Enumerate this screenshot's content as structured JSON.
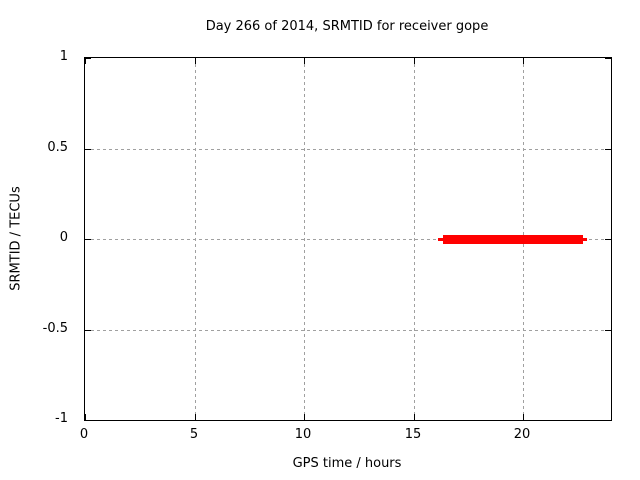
{
  "figure": {
    "title": "Day 266 of 2014, SRMTID for receiver gope",
    "xlabel": "GPS time / hours",
    "ylabel": "SRMTID / TECUs"
  },
  "colors": {
    "background": "#ffffff",
    "border": "#000000",
    "grid": "#a0a0a0",
    "text": "#000000",
    "series": "#ff0000"
  },
  "chart_data": {
    "type": "line",
    "title": "Day 266 of 2014, SRMTID for receiver gope",
    "xlabel": "GPS time / hours",
    "ylabel": "SRMTID / TECUs",
    "xlim": [
      0,
      24
    ],
    "ylim": [
      -1,
      1
    ],
    "x_ticks": [
      0,
      5,
      10,
      15,
      20
    ],
    "y_ticks": [
      1,
      0.5,
      0,
      -0.5,
      -1
    ],
    "grid": true,
    "legend": "none",
    "series": [
      {
        "name": "SRMTID",
        "color": "#ff0000",
        "description": "flat line at 0 TECUs between ~16.1 and ~22.9 GPS hours",
        "segments": [
          {
            "x1": 16.1,
            "x2": 16.33,
            "y": 0,
            "weight": "thin"
          },
          {
            "x1": 16.33,
            "x2": 22.72,
            "y": 0,
            "weight": "thick"
          },
          {
            "x1": 22.72,
            "x2": 22.9,
            "y": 0,
            "weight": "thin"
          }
        ]
      }
    ]
  }
}
